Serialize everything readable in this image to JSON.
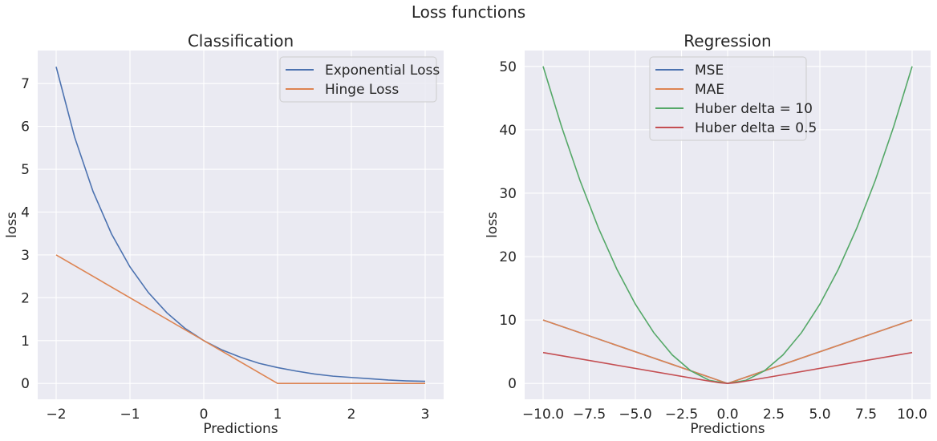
{
  "suptitle": "Loss functions",
  "chart_data": [
    {
      "type": "line",
      "title": "Classification",
      "xlabel": "Predictions",
      "ylabel": "loss",
      "xlim": [
        -2.25,
        3.25
      ],
      "ylim": [
        -0.37,
        7.77
      ],
      "xticks": [
        -2,
        -1,
        0,
        1,
        2,
        3
      ],
      "xtick_labels": [
        "−2",
        "−1",
        "0",
        "1",
        "2",
        "3"
      ],
      "yticks": [
        0,
        1,
        2,
        3,
        4,
        5,
        6,
        7
      ],
      "ytick_labels": [
        "0",
        "1",
        "2",
        "3",
        "4",
        "5",
        "6",
        "7"
      ],
      "grid": true,
      "legend_position": "top-right",
      "series": [
        {
          "name": "Exponential Loss",
          "color": "#4c72b0",
          "x": [
            -2,
            -1.75,
            -1.5,
            -1.25,
            -1,
            -0.75,
            -0.5,
            -0.25,
            0,
            0.25,
            0.5,
            0.75,
            1,
            1.25,
            1.5,
            1.75,
            2,
            2.25,
            2.5,
            2.75,
            3
          ],
          "y": [
            7.39,
            5.75,
            4.48,
            3.49,
            2.72,
            2.12,
            1.65,
            1.28,
            1.0,
            0.78,
            0.61,
            0.47,
            0.37,
            0.29,
            0.22,
            0.17,
            0.14,
            0.11,
            0.08,
            0.06,
            0.05
          ]
        },
        {
          "name": "Hinge Loss",
          "color": "#dd8452",
          "x": [
            -2,
            1,
            3
          ],
          "y": [
            3,
            0,
            0
          ]
        }
      ]
    },
    {
      "type": "line",
      "title": "Regression",
      "xlabel": "Predictions",
      "ylabel": "loss",
      "xlim": [
        -11.0,
        11.0
      ],
      "ylim": [
        -2.5,
        52.5
      ],
      "xticks": [
        -10,
        -7.5,
        -5,
        -2.5,
        0,
        2.5,
        5,
        7.5,
        10
      ],
      "xtick_labels": [
        "−10.0",
        "−7.5",
        "−5.0",
        "−2.5",
        "0.0",
        "2.5",
        "5.0",
        "7.5",
        "10.0"
      ],
      "yticks": [
        0,
        10,
        20,
        30,
        40,
        50
      ],
      "ytick_labels": [
        "0",
        "10",
        "20",
        "30",
        "40",
        "50"
      ],
      "grid": true,
      "legend_position": "top-center",
      "series": [
        {
          "name": "MSE",
          "color": "#4c72b0",
          "x": [
            -10,
            0,
            10
          ],
          "y": [
            10,
            0,
            10
          ]
        },
        {
          "name": "MAE",
          "color": "#dd8452",
          "x": [
            -10,
            0,
            10
          ],
          "y": [
            10,
            0,
            10
          ]
        },
        {
          "name": "Huber delta = 10",
          "color": "#55a868",
          "x": [
            -10,
            -9,
            -8,
            -7,
            -6,
            -5,
            -4,
            -3,
            -2,
            -1,
            0,
            1,
            2,
            3,
            4,
            5,
            6,
            7,
            8,
            9,
            10
          ],
          "y": [
            50,
            40.5,
            32,
            24.5,
            18,
            12.5,
            8,
            4.5,
            2,
            0.5,
            0,
            0.5,
            2,
            4.5,
            8,
            12.5,
            18,
            24.5,
            32,
            40.5,
            50
          ]
        },
        {
          "name": "Huber delta = 0.5",
          "color": "#c44e52",
          "x": [
            -10,
            -0.5,
            0,
            0.5,
            10
          ],
          "y": [
            4.875,
            0.125,
            0,
            0.125,
            4.875
          ]
        }
      ]
    }
  ]
}
